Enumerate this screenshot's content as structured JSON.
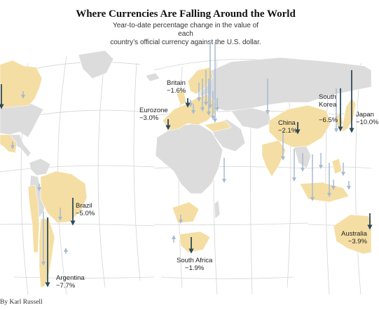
{
  "header": {
    "title": "Where Currencies Are Falling Around the World",
    "subtitle_line1": "Year-to-date percentage change in the value of each",
    "subtitle_line2": "country’s official currency against the U.S. dollar."
  },
  "colors": {
    "highlight_land": "#f5dea4",
    "other_land": "#dcdcdc",
    "graticule": "#d4d4d4",
    "labeled_arrow": "#2d4a5a",
    "minor_arrow": "#a7bad1"
  },
  "labels": [
    {
      "id": "britain",
      "name": "Britain",
      "value": "−1.6%"
    },
    {
      "id": "eurozone",
      "name": "Eurozone",
      "value": "−3.0%"
    },
    {
      "id": "china",
      "name": "China",
      "value": "−2.1%"
    },
    {
      "id": "south-korea",
      "name": "South\nKorea",
      "value": "−6.5%"
    },
    {
      "id": "japan",
      "name": "Japan",
      "value": "−10.0%"
    },
    {
      "id": "brazil",
      "name": "Brazil",
      "value": "−5.0%"
    },
    {
      "id": "argentina",
      "name": "Argentina",
      "value": "−7.7%"
    },
    {
      "id": "south-africa",
      "name": "South Africa",
      "value": "−1.9%"
    },
    {
      "id": "australia",
      "name": "Australia",
      "value": "−3.9%"
    }
  ],
  "credit": "By Karl Russell"
}
